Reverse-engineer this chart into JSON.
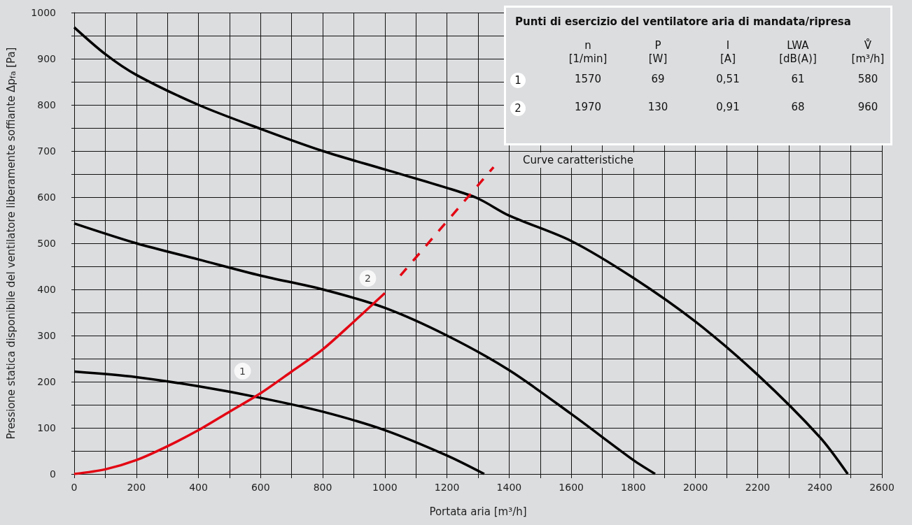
{
  "chart_data": {
    "type": "line",
    "xlabel": "Portata aria [m³/h]",
    "ylabel": "Pressione statica disponibile del ventilatore liberamente soffiante Δp$_{fa}$ [Pa]",
    "xlim": [
      0,
      2600
    ],
    "xticks": [
      0,
      {
        "value": 100,
        "label": null
      },
      200,
      {
        "value": 300,
        "label": null
      },
      400,
      {
        "value": 500,
        "label": null
      },
      600,
      {
        "value": 700,
        "label": null
      },
      800,
      {
        "value": 900,
        "label": null
      },
      1000,
      {
        "value": 1100,
        "label": null
      },
      1200,
      {
        "value": 1300,
        "label": null
      },
      1400,
      {
        "value": 1500,
        "label": null
      },
      1600,
      {
        "value": 1700,
        "label": null
      },
      1800,
      {
        "value": 1900,
        "label": null
      },
      2000,
      {
        "value": 2100,
        "label": null
      },
      2200,
      {
        "value": 2300,
        "label": null
      },
      2400,
      {
        "value": 2500,
        "label": null
      },
      2600
    ],
    "ylim": [
      0,
      1000
    ],
    "yticks": [
      0,
      {
        "value": 50,
        "label": null
      },
      100,
      {
        "value": 150,
        "label": null
      },
      200,
      {
        "value": 250,
        "label": null
      },
      300,
      {
        "value": 350,
        "label": null
      },
      400,
      {
        "value": 450,
        "label": null
      },
      500,
      {
        "value": 550,
        "label": null
      },
      600,
      {
        "value": 650,
        "label": null
      },
      700,
      {
        "value": 750,
        "label": null
      },
      800,
      {
        "value": 850,
        "label": null
      },
      900,
      {
        "value": 950,
        "label": null
      },
      1000
    ],
    "grid": true,
    "marker": "none",
    "line_style": "solid",
    "series": [
      {
        "color": "#000000",
        "x": [
          0,
          100,
          200,
          400,
          600,
          800,
          1000,
          1200,
          1300,
          1400,
          1600,
          1800,
          2000,
          2200,
          2400,
          2490
        ],
        "values": [
          968,
          910,
          865,
          800,
          748,
          700,
          660,
          620,
          597,
          560,
          505,
          425,
          330,
          215,
          80,
          0
        ]
      },
      {
        "color": "#000000",
        "x": [
          0,
          200,
          400,
          600,
          800,
          1000,
          1200,
          1400,
          1600,
          1800,
          1870
        ],
        "values": [
          543,
          500,
          465,
          430,
          400,
          360,
          300,
          225,
          130,
          30,
          0
        ]
      },
      {
        "color": "#000000",
        "x": [
          0,
          200,
          400,
          600,
          800,
          1000,
          1200,
          1320
        ],
        "values": [
          222,
          210,
          190,
          165,
          135,
          95,
          40,
          0
        ]
      },
      {
        "color": "#e30613",
        "x": [
          0,
          100,
          200,
          300,
          400,
          500,
          600,
          700,
          800,
          900,
          1000
        ],
        "values": [
          0,
          10,
          30,
          60,
          95,
          135,
          175,
          222,
          270,
          330,
          392
        ]
      },
      {
        "color": "#e30613",
        "line_style": "dashed",
        "x": [
          1050,
          1350
        ],
        "values": [
          430,
          665
        ]
      }
    ],
    "annotations": [
      "Punti di esercizio del ventilatore aria di mandata/ripresa",
      "n\n[1/min]",
      "P\n[W]",
      "I\n[A]",
      "LWA\n[dB(A)]",
      "V̊\n[m³/h]",
      "1",
      "1570",
      "69",
      "0,51",
      "61",
      "580",
      "2",
      "1970",
      "130",
      "0,91",
      "68",
      "960",
      "Curve caratteristiche",
      {
        "text": "1",
        "x": 542,
        "y": 223
      },
      {
        "text": "2",
        "x": 945,
        "y": 424
      }
    ]
  }
}
